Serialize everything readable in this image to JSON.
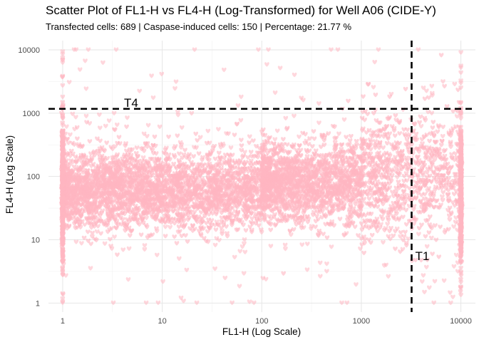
{
  "chart_data": {
    "type": "scatter",
    "title": "Scatter Plot of FL1-H vs FL4-H (Log-Transformed) for Well A06 (CIDE-Y)",
    "subtitle": "Transfected cells: 689 | Caspase-induced cells: 150 | Percentage: 21.77 %",
    "xlabel": "FL1-H (Log Scale)",
    "ylabel": "FL4-H (Log Scale)",
    "x_scale": "log10",
    "y_scale": "log10",
    "xlim": [
      0.72,
      14000
    ],
    "ylim": [
      0.72,
      14000
    ],
    "x_ticks": [
      1,
      10,
      100,
      1000,
      10000
    ],
    "x_tick_labels": [
      "1",
      "10",
      "100",
      "1000",
      "10000"
    ],
    "y_ticks": [
      1,
      10,
      100,
      1000,
      10000
    ],
    "y_tick_labels": [
      "1",
      "10",
      "100",
      "1000",
      "10000"
    ],
    "grid": true,
    "point_color": "#ffb6c1",
    "point_marker": "heart",
    "thresholds": [
      {
        "axis": "x",
        "value": 3200,
        "label": "T1",
        "style": "dashed",
        "color": "#000000"
      },
      {
        "axis": "y",
        "value": 1170,
        "label": "T4",
        "style": "dashed",
        "color": "#000000"
      }
    ],
    "density_bands": [
      {
        "x_range": [
          1,
          100
        ],
        "y_center": 60,
        "y_spread_log10": 0.3,
        "weight": 0.55
      },
      {
        "x_range": [
          100,
          1000
        ],
        "y_center": 80,
        "y_spread_log10": 0.3,
        "weight": 0.3
      },
      {
        "x_range": [
          1000,
          10000
        ],
        "y_center": 100,
        "y_spread_log10": 0.5,
        "weight": 0.15
      }
    ]
  }
}
